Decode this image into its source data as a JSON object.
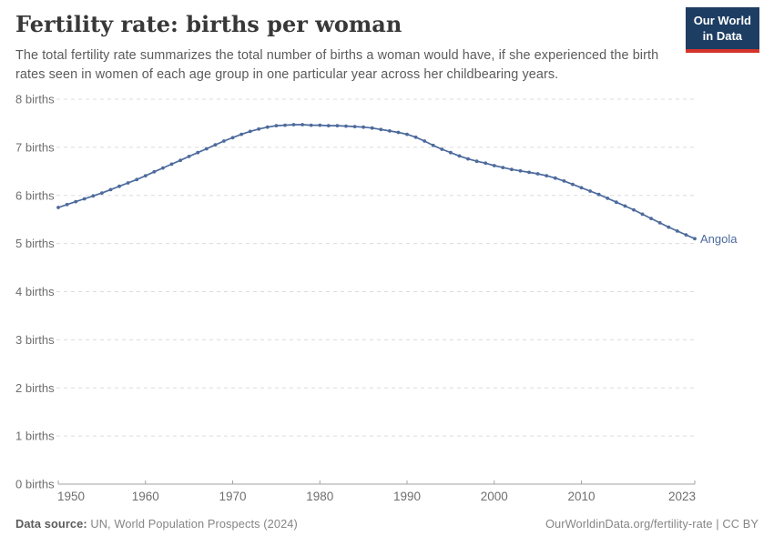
{
  "header": {
    "title": "Fertility rate: births per woman",
    "subtitle": "The total fertility rate summarizes the total number of births a woman would have, if she experienced the birth rates seen in women of each age group in one particular year across her childbearing years.",
    "logo": {
      "line1": "Our World",
      "line2": "in Data",
      "bg_color": "#1d3d63",
      "accent_color": "#d4342c"
    }
  },
  "chart_data": {
    "type": "line",
    "title": "Fertility rate: births per woman",
    "xlabel": "",
    "ylabel": "",
    "xlim": [
      1950,
      2023
    ],
    "ylim": [
      0,
      8
    ],
    "grid": "horizontal-dashed",
    "legend_position": "end-of-line-label",
    "x_ticks": [
      1950,
      1960,
      1970,
      1980,
      1990,
      2000,
      2010,
      2023
    ],
    "y_ticks": [
      0,
      1,
      2,
      3,
      4,
      5,
      6,
      7,
      8
    ],
    "y_tick_labels": [
      "0 births",
      "1 births",
      "2 births",
      "3 births",
      "4 births",
      "5 births",
      "6 births",
      "7 births",
      "8 births"
    ],
    "series": [
      {
        "name": "Angola",
        "color": "#4c6a9c",
        "marker": "circle",
        "x": [
          1950,
          1951,
          1952,
          1953,
          1954,
          1955,
          1956,
          1957,
          1958,
          1959,
          1960,
          1961,
          1962,
          1963,
          1964,
          1965,
          1966,
          1967,
          1968,
          1969,
          1970,
          1971,
          1972,
          1973,
          1974,
          1975,
          1976,
          1977,
          1978,
          1979,
          1980,
          1981,
          1982,
          1983,
          1984,
          1985,
          1986,
          1987,
          1988,
          1989,
          1990,
          1991,
          1992,
          1993,
          1994,
          1995,
          1996,
          1997,
          1998,
          1999,
          2000,
          2001,
          2002,
          2003,
          2004,
          2005,
          2006,
          2007,
          2008,
          2009,
          2010,
          2011,
          2012,
          2013,
          2014,
          2015,
          2016,
          2017,
          2018,
          2019,
          2020,
          2021,
          2022,
          2023
        ],
        "values": [
          5.75,
          5.81,
          5.87,
          5.93,
          5.99,
          6.05,
          6.12,
          6.19,
          6.26,
          6.33,
          6.41,
          6.49,
          6.57,
          6.65,
          6.73,
          6.81,
          6.89,
          6.97,
          7.05,
          7.13,
          7.2,
          7.27,
          7.33,
          7.38,
          7.42,
          7.45,
          7.46,
          7.47,
          7.47,
          7.46,
          7.46,
          7.45,
          7.45,
          7.44,
          7.43,
          7.42,
          7.4,
          7.37,
          7.34,
          7.31,
          7.27,
          7.21,
          7.13,
          7.04,
          6.96,
          6.89,
          6.82,
          6.76,
          6.71,
          6.67,
          6.62,
          6.58,
          6.54,
          6.51,
          6.48,
          6.45,
          6.41,
          6.36,
          6.3,
          6.23,
          6.16,
          6.09,
          6.02,
          5.94,
          5.86,
          5.78,
          5.7,
          5.61,
          5.52,
          5.43,
          5.34,
          5.26,
          5.18,
          5.1
        ]
      }
    ],
    "colors": {
      "gridline": "#dcdcdc",
      "axis": "#a3a3a3",
      "tick_label": "#6e6e6e",
      "series": "#4c6a9c"
    }
  },
  "footer": {
    "source_label": "Data source:",
    "source_text": " UN, World Population Prospects (2024)",
    "link": "OurWorldinData.org/fertility-rate | CC BY"
  }
}
